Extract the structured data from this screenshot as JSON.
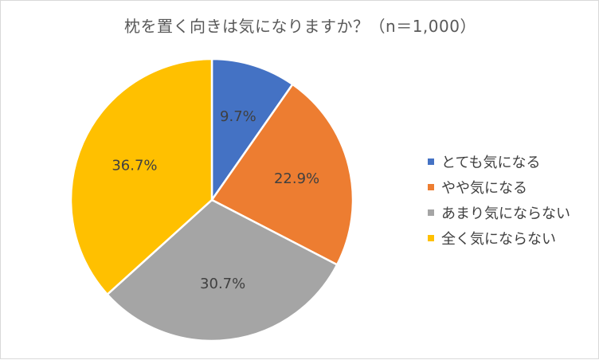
{
  "chart_data": {
    "type": "pie",
    "title": "枕を置く向きは気になりますか？（n＝1,000）",
    "categories": [
      "とても気になる",
      "やや気になる",
      "あまり気にならない",
      "全く気にならない"
    ],
    "values": [
      9.7,
      22.9,
      30.7,
      36.7
    ],
    "data_labels": [
      "9.7%",
      "22.9%",
      "30.7%",
      "36.7%"
    ],
    "colors": [
      "#4472C4",
      "#ED7D31",
      "#A5A5A5",
      "#FFC000"
    ],
    "legend_position": "right",
    "start_angle": "12 o'clock",
    "direction": "clockwise"
  }
}
